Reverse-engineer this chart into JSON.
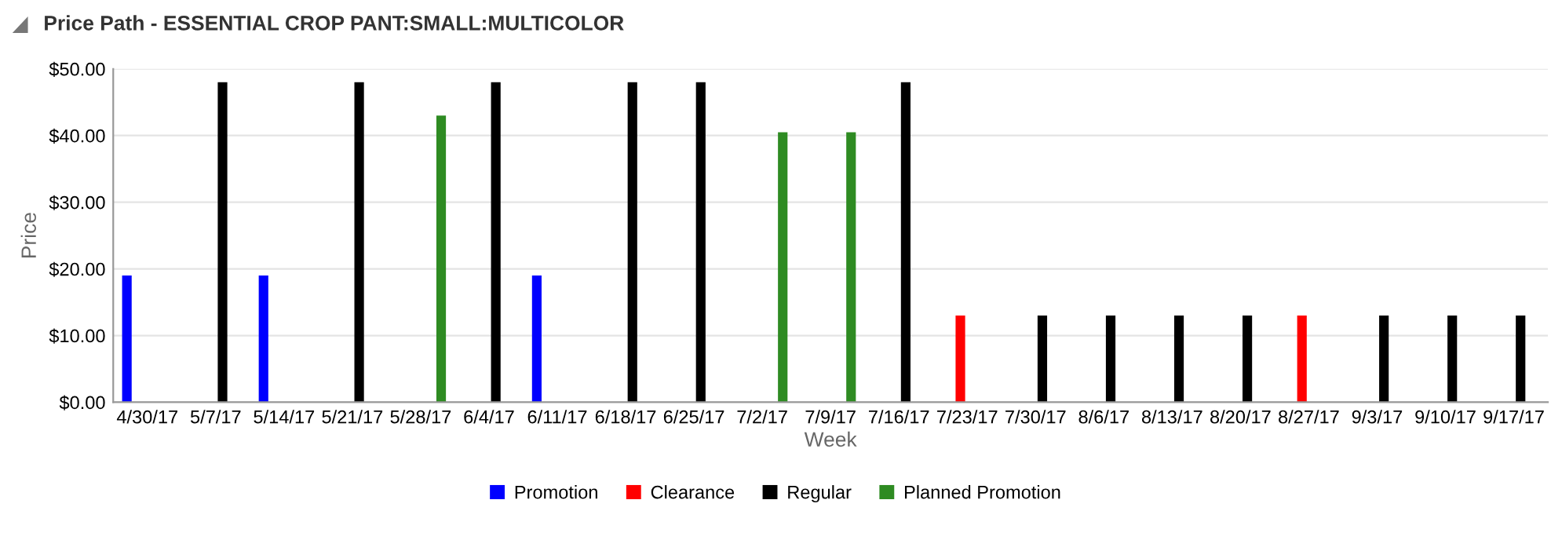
{
  "chart_data": {
    "type": "bar",
    "title": "Price Path - ESSENTIAL CROP PANT:SMALL:MULTICOLOR",
    "xlabel": "Week",
    "ylabel": "Price",
    "categories": [
      "4/30/17",
      "5/7/17",
      "5/14/17",
      "5/21/17",
      "5/28/17",
      "6/4/17",
      "6/11/17",
      "6/18/17",
      "6/25/17",
      "7/2/17",
      "7/9/17",
      "7/16/17",
      "7/23/17",
      "7/30/17",
      "8/6/17",
      "8/13/17",
      "8/20/17",
      "8/27/17",
      "9/3/17",
      "9/10/17",
      "9/17/17"
    ],
    "series": [
      {
        "name": "Promotion",
        "color": "#0000ff",
        "values": [
          19,
          null,
          19,
          null,
          null,
          null,
          19,
          null,
          null,
          null,
          null,
          null,
          null,
          null,
          null,
          null,
          null,
          null,
          null,
          null,
          null
        ]
      },
      {
        "name": "Clearance",
        "color": "#ff0000",
        "values": [
          null,
          null,
          null,
          null,
          null,
          null,
          null,
          null,
          null,
          null,
          null,
          null,
          13,
          null,
          null,
          null,
          null,
          13,
          null,
          null,
          null
        ]
      },
      {
        "name": "Regular",
        "color": "#000000",
        "values": [
          null,
          48,
          null,
          48,
          null,
          48,
          null,
          48,
          48,
          null,
          null,
          48,
          null,
          13,
          13,
          13,
          13,
          null,
          13,
          13,
          13
        ]
      },
      {
        "name": "Planned Promotion",
        "color": "#2e8b22",
        "values": [
          null,
          null,
          null,
          null,
          43,
          null,
          null,
          null,
          null,
          40.5,
          40.5,
          null,
          null,
          null,
          null,
          null,
          null,
          null,
          null,
          null,
          null
        ]
      }
    ],
    "ylim": [
      0,
      50
    ],
    "yticks": [
      {
        "value": 0,
        "label": "$0.00"
      },
      {
        "value": 10,
        "label": "$10.00"
      },
      {
        "value": 20,
        "label": "$20.00"
      },
      {
        "value": 30,
        "label": "$30.00"
      },
      {
        "value": 40,
        "label": "$40.00"
      },
      {
        "value": 50,
        "label": "$50.00"
      }
    ],
    "grid": "y",
    "legend": "bottom"
  }
}
